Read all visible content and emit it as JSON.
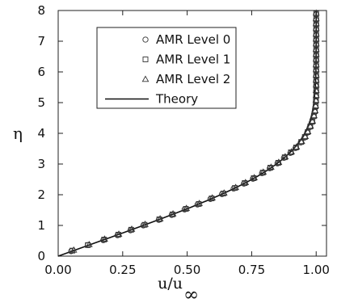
{
  "chart_data": {
    "type": "line",
    "xlabel": "u/u∞",
    "xlabel_parts": {
      "main": "u/u",
      "sub": "∞"
    },
    "ylabel": "η",
    "xlim": [
      0.0,
      1.04
    ],
    "ylim": [
      0,
      8
    ],
    "x_ticks": [
      "0.00",
      "0.25",
      "0.50",
      "0.75",
      "1.00"
    ],
    "y_ticks": [
      "0",
      "1",
      "2",
      "3",
      "4",
      "5",
      "6",
      "7",
      "8"
    ],
    "grid": false,
    "legend_position": "top-left",
    "legend": [
      {
        "label": "AMR Level 0",
        "marker": "circle"
      },
      {
        "label": "AMR Level 1",
        "marker": "square"
      },
      {
        "label": "AMR Level 2",
        "marker": "triangle"
      },
      {
        "label": "Theory",
        "marker": "line"
      }
    ],
    "series": [
      {
        "name": "Theory",
        "style": "line",
        "eta": [
          0,
          0.2,
          0.4,
          0.6,
          0.8,
          1.0,
          1.2,
          1.4,
          1.6,
          1.8,
          2.0,
          2.2,
          2.4,
          2.6,
          2.8,
          3.0,
          3.2,
          3.4,
          3.6,
          3.8,
          4.0,
          4.2,
          4.4,
          4.6,
          4.8,
          5.0,
          5.5,
          6.0,
          6.5,
          7.0,
          7.5,
          8.0
        ],
        "u": [
          0,
          0.0664,
          0.1328,
          0.1989,
          0.2647,
          0.3298,
          0.3938,
          0.4563,
          0.5168,
          0.5748,
          0.6298,
          0.6813,
          0.729,
          0.7725,
          0.8115,
          0.8461,
          0.8761,
          0.9018,
          0.9233,
          0.9411,
          0.9555,
          0.967,
          0.9759,
          0.9827,
          0.9878,
          0.9916,
          0.9969,
          0.999,
          0.9997,
          0.9999,
          1.0,
          1.0
        ]
      },
      {
        "name": "AMR Level 0",
        "style": "circle",
        "eta": [
          0.16,
          0.36,
          0.52,
          0.68,
          0.84,
          1.0,
          1.18,
          1.34,
          1.52,
          1.68,
          1.86,
          2.02,
          2.2,
          2.36,
          2.52,
          2.7,
          2.86,
          3.02,
          3.2,
          3.36,
          3.52,
          3.7,
          3.86,
          4.02,
          4.2,
          4.36,
          4.54,
          4.7,
          4.86,
          5.04,
          5.2,
          5.36,
          5.54,
          5.7,
          5.86,
          6.04,
          6.2,
          6.38,
          6.54,
          6.7,
          6.88,
          7.04,
          7.2,
          7.38,
          7.54,
          7.7,
          7.88
        ],
        "u": [
          0.05,
          0.115,
          0.175,
          0.23,
          0.28,
          0.33,
          0.39,
          0.44,
          0.49,
          0.54,
          0.59,
          0.635,
          0.68,
          0.72,
          0.755,
          0.79,
          0.82,
          0.85,
          0.875,
          0.9,
          0.92,
          0.94,
          0.955,
          0.965,
          0.975,
          0.983,
          0.99,
          0.994,
          0.997,
          0.999,
          1.0,
          1.0,
          1.0,
          1.0,
          1.0,
          1.0,
          1.0,
          1.0,
          1.0,
          1.0,
          1.0,
          1.0,
          1.0,
          1.0,
          1.0,
          1.0,
          1.0
        ]
      },
      {
        "name": "AMR Level 1",
        "style": "square",
        "eta": [
          0.18,
          0.36,
          0.54,
          0.7,
          0.86,
          1.02,
          1.2,
          1.36,
          1.54,
          1.7,
          1.88,
          2.04,
          2.22,
          2.38,
          2.54,
          2.72,
          2.88,
          3.04,
          3.22,
          3.38,
          3.54,
          3.72,
          3.88,
          4.04,
          4.22,
          4.38,
          4.56,
          4.72,
          4.88,
          5.06,
          5.22,
          5.38,
          5.56,
          5.72,
          5.88,
          6.06,
          6.22,
          6.4,
          6.56,
          6.72,
          6.9,
          7.06,
          7.22,
          7.4,
          7.56,
          7.72,
          7.9
        ],
        "u": [
          0.055,
          0.115,
          0.178,
          0.233,
          0.283,
          0.335,
          0.392,
          0.443,
          0.495,
          0.545,
          0.595,
          0.64,
          0.685,
          0.723,
          0.758,
          0.793,
          0.822,
          0.853,
          0.878,
          0.902,
          0.922,
          0.942,
          0.956,
          0.967,
          0.977,
          0.985,
          0.991,
          0.995,
          0.998,
          0.999,
          1.0,
          1.0,
          1.0,
          1.0,
          1.0,
          1.0,
          1.0,
          1.0,
          1.0,
          1.0,
          1.0,
          1.0,
          1.0,
          1.0,
          1.0,
          1.0,
          1.0
        ]
      },
      {
        "name": "AMR Level 2",
        "style": "triangle",
        "eta": [
          0.2,
          0.38,
          0.56,
          0.72,
          0.88,
          1.04,
          1.22,
          1.38,
          1.56,
          1.72,
          1.9,
          2.06,
          2.24,
          2.4,
          2.56,
          2.74,
          2.9,
          3.06,
          3.24,
          3.4,
          3.56,
          3.74,
          3.9,
          4.06,
          4.24,
          4.4,
          4.58,
          4.74,
          4.9,
          5.08,
          5.24,
          5.4,
          5.58,
          5.74,
          5.9,
          6.08,
          6.24,
          6.42,
          6.58,
          6.74,
          6.92,
          7.08,
          7.24,
          7.42,
          7.58,
          7.74,
          7.92
        ],
        "u": [
          0.06,
          0.12,
          0.18,
          0.235,
          0.285,
          0.337,
          0.395,
          0.445,
          0.497,
          0.547,
          0.597,
          0.643,
          0.688,
          0.726,
          0.76,
          0.795,
          0.825,
          0.855,
          0.88,
          0.904,
          0.924,
          0.944,
          0.958,
          0.968,
          0.978,
          0.986,
          0.992,
          0.996,
          0.998,
          0.999,
          1.0,
          1.0,
          1.0,
          1.0,
          1.0,
          1.0,
          1.0,
          1.0,
          1.0,
          1.0,
          1.0,
          1.0,
          1.0,
          1.0,
          1.0,
          1.0,
          1.0
        ]
      }
    ]
  }
}
